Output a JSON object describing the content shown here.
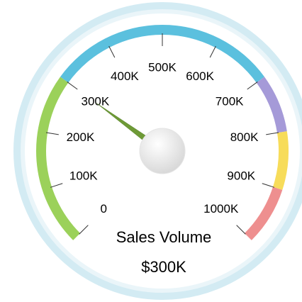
{
  "chart_data": {
    "type": "gauge",
    "title": "Sales Volume",
    "value": 300000,
    "value_label": "$300K",
    "needle_color": "#6e9a36",
    "ylim": [
      0,
      1000000
    ],
    "yticks": [
      {
        "value": 0,
        "label": "0"
      },
      {
        "value": 100000,
        "label": "100K"
      },
      {
        "value": 200000,
        "label": "200K"
      },
      {
        "value": 300000,
        "label": "300K"
      },
      {
        "value": 400000,
        "label": "400K"
      },
      {
        "value": 500000,
        "label": "500K"
      },
      {
        "value": 600000,
        "label": "600K"
      },
      {
        "value": 700000,
        "label": "700K"
      },
      {
        "value": 800000,
        "label": "800K"
      },
      {
        "value": 900000,
        "label": "900K"
      },
      {
        "value": 1000000,
        "label": "1000K"
      }
    ],
    "bands": [
      {
        "from": 0,
        "to": 300000,
        "color": "#9bd15a"
      },
      {
        "from": 300000,
        "to": 700000,
        "color": "#5bc0de"
      },
      {
        "from": 700000,
        "to": 800000,
        "color": "#a59ad8"
      },
      {
        "from": 800000,
        "to": 900000,
        "color": "#f7dc5a"
      },
      {
        "from": 900000,
        "to": 1000000,
        "color": "#ee8f8f"
      }
    ]
  }
}
